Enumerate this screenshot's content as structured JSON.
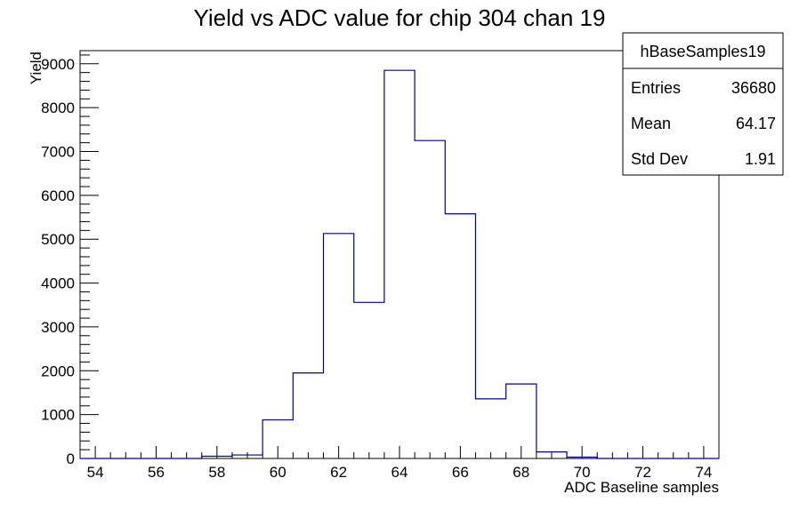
{
  "chart_data": {
    "type": "histogram",
    "title": "Yield vs ADC value for chip 304 chan 19",
    "xlabel": "ADC Baseline samples",
    "ylabel": "Yield",
    "xlim": [
      53.5,
      74.5
    ],
    "ylim": [
      0,
      9300
    ],
    "x_ticks": [
      "54",
      "56",
      "58",
      "60",
      "62",
      "64",
      "66",
      "68",
      "70",
      "72",
      "74"
    ],
    "y_ticks": [
      "0",
      "1000",
      "2000",
      "3000",
      "4000",
      "5000",
      "6000",
      "7000",
      "8000",
      "9000"
    ],
    "bin_edges": [
      53.5,
      54.5,
      55.5,
      56.5,
      57.5,
      58.5,
      59.5,
      60.5,
      61.5,
      62.5,
      63.5,
      64.5,
      65.5,
      66.5,
      67.5,
      68.5,
      69.5,
      70.5,
      71.5,
      72.5,
      73.5,
      74.5
    ],
    "values": [
      0,
      0,
      0,
      0,
      50,
      80,
      880,
      1950,
      5130,
      3560,
      8850,
      7250,
      5580,
      1360,
      1700,
      150,
      30,
      0,
      0,
      0,
      0
    ],
    "line_color": "#000099",
    "grid": false,
    "stats_box": {
      "title": "hBaseSamples19",
      "rows": [
        {
          "label": "Entries",
          "value": "36680"
        },
        {
          "label": "Mean",
          "value": "64.17"
        },
        {
          "label": "Std Dev",
          "value": "1.91"
        }
      ]
    }
  }
}
